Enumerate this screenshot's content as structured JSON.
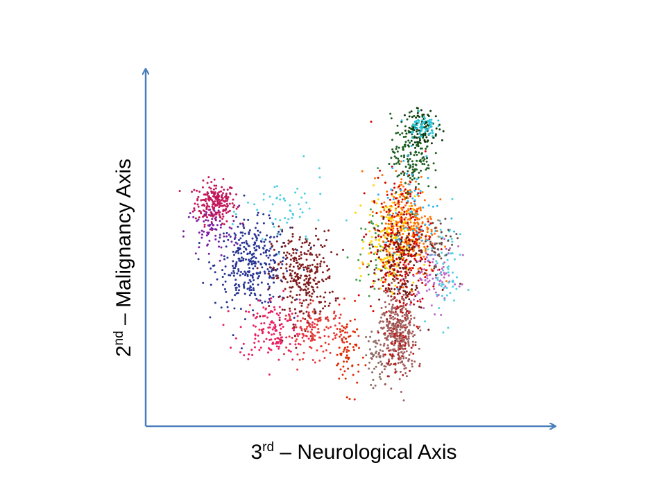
{
  "chart_data": {
    "type": "scatter",
    "title": "",
    "xlabel": {
      "ordinal": "3",
      "suffix": "rd",
      "text": " – Neurological Axis"
    },
    "ylabel": {
      "ordinal": "2",
      "suffix": "nd",
      "text": " – Malignancy Axis"
    },
    "xlim": [
      0,
      100
    ],
    "ylim": [
      0,
      100
    ],
    "grid": false,
    "legend": "none",
    "axis_color": "#4a7ebb",
    "clusters": [
      {
        "color": "#c2185b",
        "cx": 16,
        "cy": 65,
        "sx": 3.0,
        "sy": 3.2,
        "n": 220
      },
      {
        "color": "#283593",
        "cx": 27,
        "cy": 46,
        "sx": 5.5,
        "sy": 6.5,
        "n": 330
      },
      {
        "color": "#7b1fa2",
        "cx": 15,
        "cy": 56,
        "sx": 4.0,
        "sy": 4.0,
        "n": 70
      },
      {
        "color": "#e91e63",
        "cx": 33,
        "cy": 26,
        "sx": 5.0,
        "sy": 5.0,
        "n": 150
      },
      {
        "color": "#7f1d1d",
        "cx": 42,
        "cy": 42,
        "sx": 4.5,
        "sy": 7.0,
        "n": 300
      },
      {
        "color": "#e53935",
        "cx": 46,
        "cy": 25,
        "sx": 4.5,
        "sy": 4.0,
        "n": 130
      },
      {
        "color": "#dd2c00",
        "cx": 55,
        "cy": 19,
        "sx": 2.0,
        "sy": 6.0,
        "n": 70
      },
      {
        "color": "#4dd0e1",
        "cx": 37,
        "cy": 62,
        "sx": 6.0,
        "sy": 6.0,
        "n": 55
      },
      {
        "color": "#43a047",
        "cx": 63,
        "cy": 50,
        "sx": 3.5,
        "sy": 10.0,
        "n": 40
      },
      {
        "color": "#ffd600",
        "cx": 68,
        "cy": 53,
        "sx": 3.5,
        "sy": 7.0,
        "n": 210
      },
      {
        "color": "#ff6f00",
        "cx": 73,
        "cy": 58,
        "sx": 4.0,
        "sy": 8.0,
        "n": 300
      },
      {
        "color": "#d50000",
        "cx": 71,
        "cy": 51,
        "sx": 4.5,
        "sy": 11.0,
        "n": 260
      },
      {
        "color": "#6d1b1b",
        "cx": 70,
        "cy": 46,
        "sx": 4.0,
        "sy": 8.0,
        "n": 170
      },
      {
        "color": "#1b5e20",
        "cx": 74,
        "cy": 80,
        "sx": 3.0,
        "sy": 6.0,
        "n": 150
      },
      {
        "color": "#0d3b0d",
        "cx": 77,
        "cy": 88,
        "sx": 2.5,
        "sy": 3.0,
        "n": 100
      },
      {
        "color": "#26c6da",
        "cx": 77,
        "cy": 89,
        "sx": 2.0,
        "sy": 1.8,
        "n": 60
      },
      {
        "color": "#29b6f6",
        "cx": 75,
        "cy": 62,
        "sx": 4.5,
        "sy": 10.0,
        "n": 60
      },
      {
        "color": "#a1605e",
        "cx": 70,
        "cy": 24,
        "sx": 2.8,
        "sy": 6.5,
        "n": 330
      },
      {
        "color": "#b71c1c",
        "cx": 70,
        "cy": 23,
        "sx": 2.0,
        "sy": 5.0,
        "n": 60
      },
      {
        "color": "#ba68c8",
        "cx": 81,
        "cy": 42,
        "sx": 3.5,
        "sy": 5.0,
        "n": 80
      },
      {
        "color": "#4dd0e1",
        "cx": 84,
        "cy": 44,
        "sx": 2.5,
        "sy": 8.0,
        "n": 60
      },
      {
        "color": "#6d4c41",
        "cx": 82,
        "cy": 52,
        "sx": 2.5,
        "sy": 4.0,
        "n": 40
      },
      {
        "color": "#8d6e63",
        "cx": 63,
        "cy": 16,
        "sx": 1.5,
        "sy": 5.0,
        "n": 40
      }
    ]
  }
}
